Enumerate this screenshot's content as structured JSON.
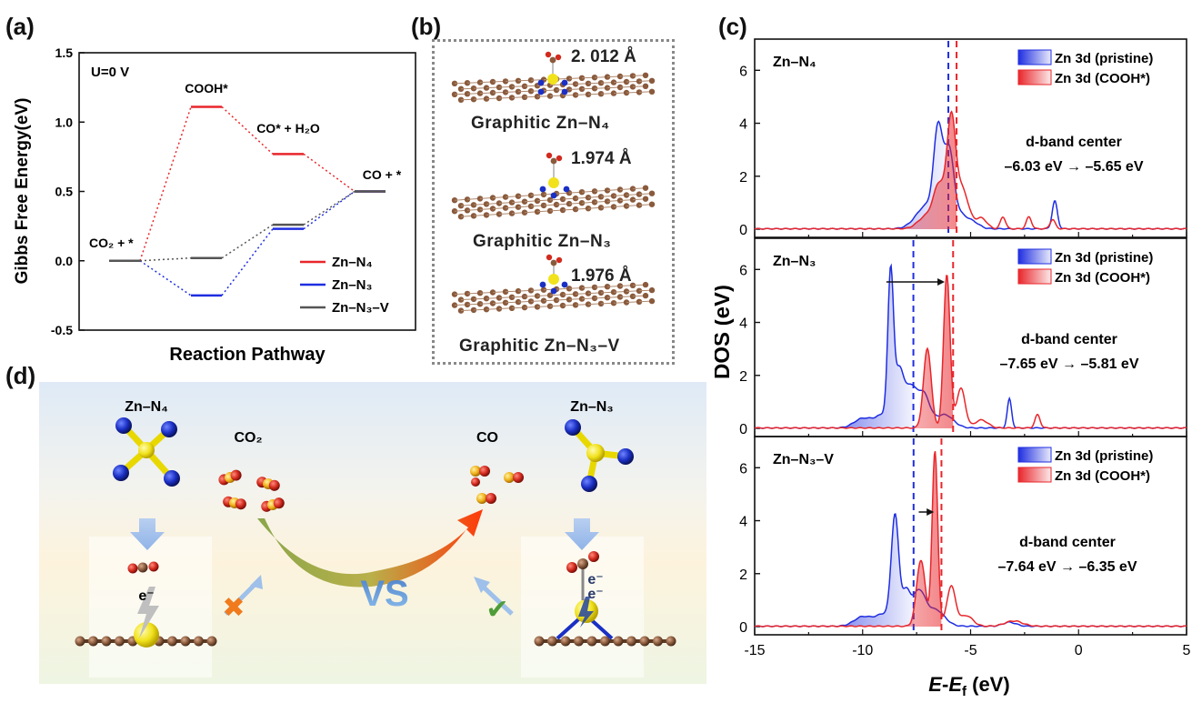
{
  "panels": {
    "a": "(a)",
    "b": "(b)",
    "c": "(c)",
    "d": "(d)"
  },
  "panel_a": {
    "condition_label": "U=0 V",
    "labels": {
      "cooh": "COOH*",
      "co_h2o": "CO* + H₂O",
      "co": "CO + *",
      "co2": "CO₂ + *"
    },
    "legend": [
      "Zn–N₄",
      "Zn–N₃",
      "Zn–N₃–V"
    ]
  },
  "panel_b": {
    "structures": [
      {
        "caption": "Graphitic Zn–N₄",
        "bond": "2. 012 Å"
      },
      {
        "caption": "Graphitic Zn–N₃",
        "bond": "1.974 Å"
      },
      {
        "caption": "Graphitic Zn–N₃–V",
        "bond": "1.976 Å"
      }
    ]
  },
  "panel_c": {
    "subpanels": [
      {
        "name": "Zn–N₄",
        "dband_title": "d-band center",
        "dband_values": "–6.03 eV → –5.65 eV"
      },
      {
        "name": "Zn–N₃",
        "dband_title": "d-band center",
        "dband_values": "–7.65 eV → –5.81 eV"
      },
      {
        "name": "Zn–N₃–V",
        "dband_title": "d-band center",
        "dband_values": "–7.64 eV → –6.35 eV"
      }
    ],
    "legend": [
      "Zn 3d (pristine)",
      "Zn 3d (COOH*)"
    ]
  },
  "panel_d": {
    "left_site": "Zn–N₄",
    "right_site": "Zn–N₃",
    "reactant": "CO₂",
    "product": "CO",
    "electron": "e⁻",
    "vs": "VS"
  },
  "colors": {
    "zn_n4": "#e8262b",
    "zn_n3": "#1f2ee0",
    "zn_n3_v": "#555555",
    "pristine": "#1f2ee0",
    "cooh": "#e8262b",
    "carbon": "#8a5a3c",
    "nitrogen": "#1a2fc4",
    "zinc": "#f1e21c",
    "oxygen": "#d22a1e"
  },
  "chart_data": [
    {
      "type": "line",
      "title": "",
      "xlabel": "Reaction Pathway",
      "ylabel": "Gibbs Free Energy(eV)",
      "ylim": [
        -0.5,
        1.5
      ],
      "yticks": [
        "-0.5",
        "0.0",
        "0.5",
        "1.0",
        "1.5"
      ],
      "x": [
        "CO₂ + *",
        "COOH*",
        "CO* + H₂O",
        "CO + *"
      ],
      "series": [
        {
          "name": "Zn–N₄",
          "values": [
            0.0,
            1.11,
            0.77,
            0.5
          ]
        },
        {
          "name": "Zn–N₃",
          "values": [
            0.0,
            -0.25,
            0.23,
            0.5
          ]
        },
        {
          "name": "Zn–N₃–V",
          "values": [
            0.0,
            0.02,
            0.26,
            0.5
          ]
        }
      ]
    },
    {
      "type": "area",
      "xlabel": "E-E_f (eV)",
      "ylabel": "DOS (eV)",
      "xlim": [
        -15,
        5
      ],
      "xticks": [
        "-15",
        "-10",
        "-5",
        "0",
        "5"
      ],
      "ylim": [
        0,
        6.8
      ],
      "yticks": [
        "0",
        "2",
        "4",
        "6"
      ],
      "panels": [
        {
          "name": "Zn–N₄",
          "dband_center": {
            "pristine": -6.03,
            "cooh": -5.65
          },
          "series": [
            {
              "name": "Zn 3d (pristine)",
              "peaks": [
                [
                  -7.0,
                  0.9,
                  0.5
                ],
                [
                  -6.5,
                  3.3,
                  0.2
                ],
                [
                  -6.0,
                  2.8,
                  0.22
                ],
                [
                  -5.5,
                  0.5,
                  0.3
                ],
                [
                  -4.9,
                  0.25,
                  0.3
                ],
                [
                  -1.1,
                  1.05,
                  0.12
                ]
              ]
            },
            {
              "name": "Zn 3d (COOH*)",
              "peaks": [
                [
                  -7.0,
                  0.5,
                  0.4
                ],
                [
                  -6.45,
                  1.5,
                  0.25
                ],
                [
                  -5.9,
                  3.9,
                  0.2
                ],
                [
                  -5.4,
                  1.5,
                  0.3
                ],
                [
                  -4.5,
                  0.4,
                  0.25
                ],
                [
                  -3.5,
                  0.45,
                  0.12
                ],
                [
                  -2.3,
                  0.45,
                  0.12
                ],
                [
                  -1.2,
                  0.35,
                  0.12
                ]
              ]
            }
          ]
        },
        {
          "name": "Zn–N₃",
          "dband_center": {
            "pristine": -7.65,
            "cooh": -5.81
          },
          "series": [
            {
              "name": "Zn 3d (pristine)",
              "peaks": [
                [
                  -10.0,
                  0.35,
                  0.4
                ],
                [
                  -9.0,
                  0.5,
                  0.4
                ],
                [
                  -8.7,
                  5.5,
                  0.13
                ],
                [
                  -8.3,
                  2.0,
                  0.2
                ],
                [
                  -7.8,
                  1.4,
                  0.25
                ],
                [
                  -7.2,
                  1.3,
                  0.3
                ],
                [
                  -6.2,
                  0.5,
                  0.4
                ],
                [
                  -3.2,
                  1.1,
                  0.1
                ]
              ]
            },
            {
              "name": "Zn 3d (COOH*)",
              "peaks": [
                [
                  -7.0,
                  3.0,
                  0.18
                ],
                [
                  -6.1,
                  5.8,
                  0.15
                ],
                [
                  -5.45,
                  1.5,
                  0.2
                ],
                [
                  -4.5,
                  0.3,
                  0.3
                ],
                [
                  -1.9,
                  0.5,
                  0.12
                ]
              ]
            }
          ]
        },
        {
          "name": "Zn–N₃–V",
          "dband_center": {
            "pristine": -7.64,
            "cooh": -6.35
          },
          "series": [
            {
              "name": "Zn 3d (pristine)",
              "peaks": [
                [
                  -10.0,
                  0.35,
                  0.4
                ],
                [
                  -9.0,
                  0.45,
                  0.4
                ],
                [
                  -8.5,
                  4.0,
                  0.17
                ],
                [
                  -8.0,
                  1.2,
                  0.2
                ],
                [
                  -7.4,
                  1.3,
                  0.3
                ],
                [
                  -6.6,
                  0.6,
                  0.4
                ],
                [
                  -3.2,
                  0.15,
                  0.3
                ]
              ]
            },
            {
              "name": "Zn 3d (COOH*)",
              "peaks": [
                [
                  -7.3,
                  2.5,
                  0.2
                ],
                [
                  -6.65,
                  6.6,
                  0.13
                ],
                [
                  -5.9,
                  1.5,
                  0.2
                ],
                [
                  -5.2,
                  0.4,
                  0.3
                ],
                [
                  -3.0,
                  0.2,
                  0.4
                ]
              ]
            }
          ]
        }
      ]
    }
  ]
}
